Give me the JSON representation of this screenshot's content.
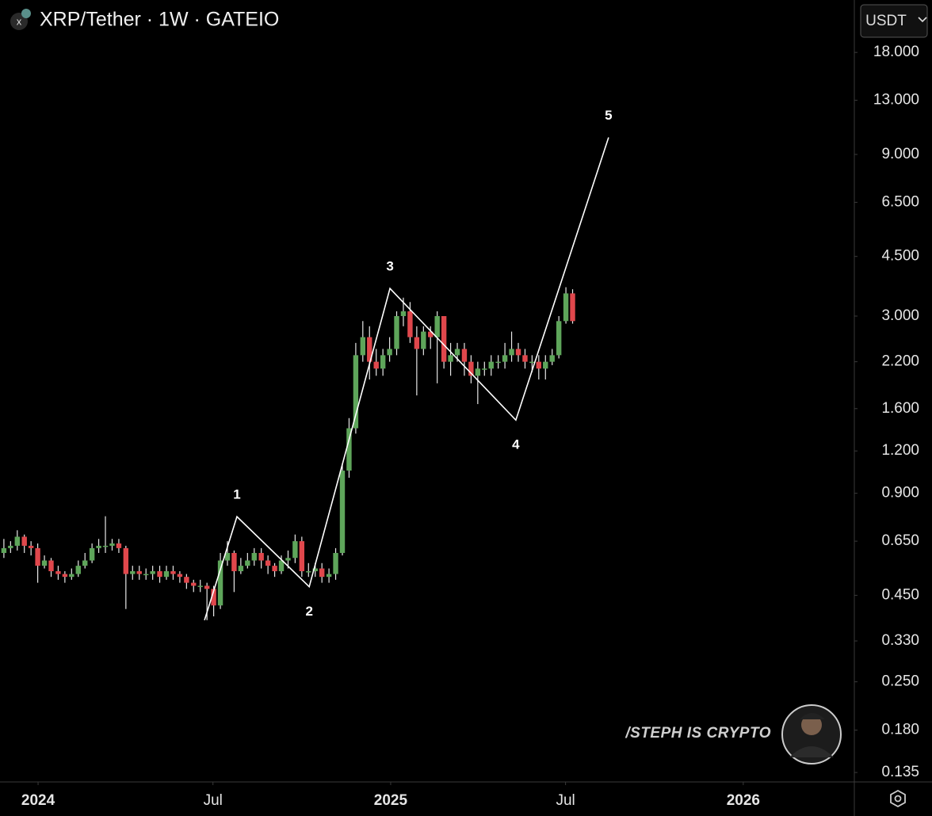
{
  "chart_data": {
    "type": "candlestick",
    "title": "XRP/Tether · 1W · GATEIO",
    "currency": "USDT",
    "watermark": "/STEPH IS CRYPTO",
    "log": true,
    "up_color": "#5ea55a",
    "down_color": "#e0474c",
    "xlim": [
      2023.892,
      2026.315
    ],
    "xticks": [
      {
        "value": 2024,
        "label": "2024"
      },
      {
        "value": 2024.496,
        "label": "Jul"
      },
      {
        "value": 2025,
        "label": "2025"
      },
      {
        "value": 2025.496,
        "label": "Jul"
      },
      {
        "value": 2026,
        "label": "2026"
      }
    ],
    "ylim": [
      0.1266,
      25.7
    ],
    "yticks": [
      {
        "value": 18,
        "label": "18.000"
      },
      {
        "value": 13,
        "label": "13.000"
      },
      {
        "value": 9,
        "label": "9.000"
      },
      {
        "value": 6.5,
        "label": "6.500"
      },
      {
        "value": 4.5,
        "label": "4.500"
      },
      {
        "value": 3,
        "label": "3.000"
      },
      {
        "value": 2.2,
        "label": "2.200"
      },
      {
        "value": 1.6,
        "label": "1.600"
      },
      {
        "value": 1.2,
        "label": "1.200"
      },
      {
        "value": 0.9,
        "label": "0.900"
      },
      {
        "value": 0.65,
        "label": "0.650"
      },
      {
        "value": 0.45,
        "label": "0.450"
      },
      {
        "value": 0.33,
        "label": "0.330"
      },
      {
        "value": 0.25,
        "label": "0.250"
      },
      {
        "value": 0.18,
        "label": "0.180"
      },
      {
        "value": 0.135,
        "label": "0.135"
      }
    ],
    "x": [
      2023.903,
      2023.922,
      2023.941,
      2023.961,
      2023.98,
      2023.999,
      2024.018,
      2024.037,
      2024.057,
      2024.076,
      2024.095,
      2024.114,
      2024.133,
      2024.153,
      2024.172,
      2024.191,
      2024.21,
      2024.229,
      2024.249,
      2024.268,
      2024.287,
      2024.306,
      2024.325,
      2024.345,
      2024.364,
      2024.383,
      2024.402,
      2024.421,
      2024.441,
      2024.46,
      2024.479,
      2024.498,
      2024.517,
      2024.537,
      2024.556,
      2024.575,
      2024.594,
      2024.613,
      2024.633,
      2024.652,
      2024.671,
      2024.69,
      2024.709,
      2024.729,
      2024.748,
      2024.767,
      2024.786,
      2024.805,
      2024.825,
      2024.844,
      2024.863,
      2024.882,
      2024.901,
      2024.921,
      2024.94,
      2024.959,
      2024.978,
      2024.997,
      2025.017,
      2025.036,
      2025.055,
      2025.074,
      2025.093,
      2025.113,
      2025.132,
      2025.151,
      2025.17,
      2025.189,
      2025.209,
      2025.228,
      2025.247,
      2025.266,
      2025.285,
      2025.305,
      2025.324,
      2025.343,
      2025.362,
      2025.381,
      2025.401,
      2025.42,
      2025.439,
      2025.458,
      2025.477,
      2025.497,
      2025.516
    ],
    "open": [
      0.6,
      0.62,
      0.63,
      0.67,
      0.63,
      0.62,
      0.55,
      0.57,
      0.53,
      0.52,
      0.51,
      0.52,
      0.55,
      0.57,
      0.62,
      0.63,
      0.63,
      0.64,
      0.62,
      0.52,
      0.53,
      0.52,
      0.52,
      0.53,
      0.51,
      0.53,
      0.52,
      0.51,
      0.49,
      0.48,
      0.48,
      0.47,
      0.42,
      0.57,
      0.6,
      0.53,
      0.55,
      0.57,
      0.6,
      0.57,
      0.55,
      0.53,
      0.57,
      0.58,
      0.65,
      0.53,
      0.53,
      0.54,
      0.51,
      0.52,
      0.6,
      1.05,
      1.4,
      2.3,
      2.6,
      2.2,
      2.1,
      2.3,
      2.4,
      3.0,
      3.1,
      2.6,
      2.4,
      2.7,
      2.6,
      3.0,
      2.2,
      2.3,
      2.4,
      2.2,
      2.0,
      2.1,
      2.1,
      2.2,
      2.2,
      2.3,
      2.4,
      2.3,
      2.2,
      2.2,
      2.1,
      2.2,
      2.3,
      2.9,
      3.5
    ],
    "high": [
      0.66,
      0.65,
      0.7,
      0.68,
      0.65,
      0.64,
      0.59,
      0.58,
      0.55,
      0.53,
      0.54,
      0.57,
      0.6,
      0.64,
      0.66,
      0.77,
      0.66,
      0.66,
      0.63,
      0.55,
      0.55,
      0.54,
      0.55,
      0.55,
      0.55,
      0.55,
      0.53,
      0.52,
      0.5,
      0.5,
      0.49,
      0.48,
      0.6,
      0.65,
      0.61,
      0.58,
      0.6,
      0.62,
      0.62,
      0.59,
      0.56,
      0.59,
      0.61,
      0.68,
      0.67,
      0.56,
      0.56,
      0.56,
      0.54,
      0.62,
      1.1,
      1.5,
      2.5,
      2.9,
      2.8,
      2.4,
      2.4,
      2.6,
      3.1,
      3.4,
      3.3,
      2.8,
      2.8,
      2.8,
      3.1,
      3.0,
      2.5,
      2.5,
      2.5,
      2.3,
      2.2,
      2.2,
      2.3,
      2.3,
      2.5,
      2.7,
      2.5,
      2.4,
      2.3,
      2.3,
      2.3,
      2.4,
      3.0,
      3.65,
      3.6
    ],
    "low": [
      0.58,
      0.6,
      0.61,
      0.6,
      0.59,
      0.49,
      0.54,
      0.51,
      0.5,
      0.49,
      0.5,
      0.51,
      0.54,
      0.56,
      0.6,
      0.6,
      0.61,
      0.6,
      0.41,
      0.5,
      0.5,
      0.5,
      0.5,
      0.49,
      0.5,
      0.5,
      0.49,
      0.47,
      0.46,
      0.46,
      0.38,
      0.39,
      0.41,
      0.55,
      0.46,
      0.52,
      0.54,
      0.55,
      0.54,
      0.52,
      0.51,
      0.52,
      0.54,
      0.56,
      0.51,
      0.51,
      0.51,
      0.49,
      0.49,
      0.5,
      0.59,
      1.0,
      1.35,
      2.2,
      1.95,
      2.0,
      2.0,
      2.2,
      2.3,
      2.8,
      2.5,
      1.75,
      2.3,
      2.4,
      1.9,
      2.1,
      2.0,
      2.2,
      2.0,
      1.9,
      1.65,
      2.0,
      2.0,
      2.1,
      2.1,
      2.2,
      2.2,
      2.1,
      2.05,
      1.95,
      1.95,
      2.15,
      2.25,
      2.85,
      2.85
    ],
    "close": [
      0.62,
      0.63,
      0.67,
      0.63,
      0.62,
      0.55,
      0.57,
      0.53,
      0.52,
      0.51,
      0.52,
      0.55,
      0.57,
      0.62,
      0.63,
      0.63,
      0.64,
      0.62,
      0.52,
      0.53,
      0.52,
      0.52,
      0.53,
      0.51,
      0.53,
      0.52,
      0.51,
      0.49,
      0.48,
      0.48,
      0.47,
      0.42,
      0.57,
      0.6,
      0.53,
      0.55,
      0.57,
      0.6,
      0.57,
      0.55,
      0.53,
      0.57,
      0.58,
      0.65,
      0.53,
      0.53,
      0.54,
      0.51,
      0.52,
      0.6,
      1.05,
      1.4,
      2.3,
      2.6,
      2.2,
      2.1,
      2.3,
      2.4,
      3.0,
      3.1,
      2.6,
      2.4,
      2.7,
      2.6,
      3.0,
      2.2,
      2.3,
      2.4,
      2.2,
      2.0,
      2.1,
      2.1,
      2.2,
      2.2,
      2.3,
      2.4,
      2.3,
      2.2,
      2.2,
      2.1,
      2.2,
      2.3,
      2.9,
      3.5,
      2.9
    ],
    "wave": {
      "color": "#ffffff",
      "x": [
        2024.472,
        2024.564,
        2024.769,
        2024.998,
        2025.355,
        2025.618
      ],
      "values": [
        0.38,
        0.768,
        0.477,
        3.62,
        1.48,
        10.1
      ],
      "labels": [
        "1",
        "2",
        "3",
        "4",
        "5"
      ]
    }
  }
}
